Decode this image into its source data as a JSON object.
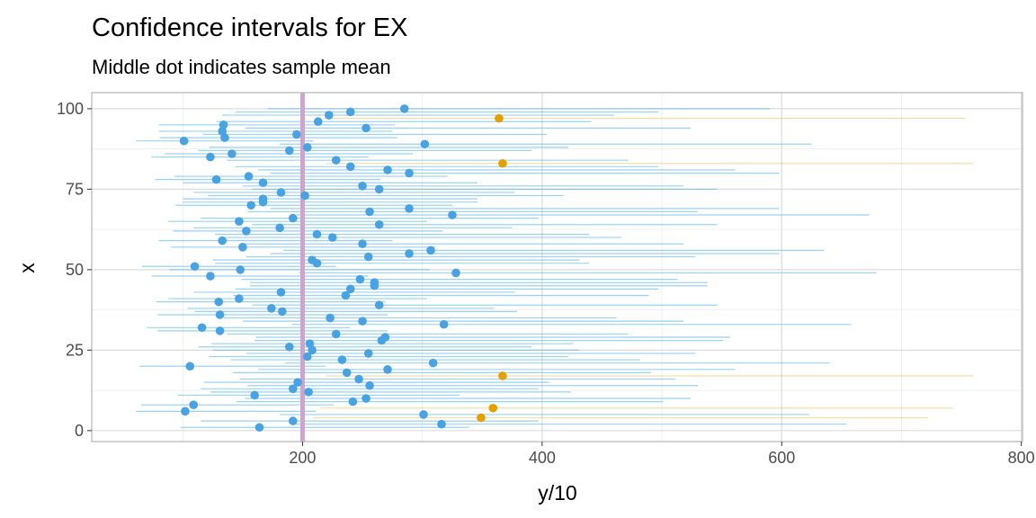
{
  "chart_data": {
    "type": "interval",
    "title": "Confidence intervals for EX",
    "subtitle": "Middle dot indicates sample mean",
    "xlabel": "y/10",
    "ylabel": "x",
    "xlim": [
      24,
      801
    ],
    "ylim": [
      -3.4,
      105
    ],
    "xticks": [
      200,
      400,
      600,
      800
    ],
    "yticks": [
      0,
      25,
      50,
      75,
      100
    ],
    "grid": true,
    "reference_line": 200,
    "colors": {
      "covers": "#56B4E9",
      "misses": "#E69F00",
      "reference": "#C9A6CC"
    },
    "x": [
      1,
      2,
      3,
      4,
      5,
      6,
      7,
      8,
      9,
      10,
      11,
      12,
      13,
      14,
      15,
      16,
      17,
      18,
      19,
      20,
      21,
      22,
      23,
      24,
      25,
      26,
      27,
      28,
      29,
      30,
      31,
      32,
      33,
      34,
      35,
      36,
      37,
      38,
      39,
      40,
      41,
      42,
      43,
      44,
      45,
      46,
      47,
      48,
      49,
      50,
      51,
      52,
      53,
      54,
      55,
      56,
      57,
      58,
      59,
      60,
      61,
      62,
      63,
      64,
      65,
      66,
      67,
      68,
      69,
      70,
      71,
      72,
      73,
      74,
      75,
      76,
      77,
      78,
      79,
      80,
      81,
      82,
      83,
      84,
      85,
      86,
      87,
      88,
      89,
      90,
      91,
      92,
      93,
      94,
      95,
      96,
      97,
      98,
      99,
      100
    ],
    "mean": [
      164,
      316,
      192,
      349,
      301,
      102,
      359,
      109,
      242,
      253,
      160,
      205,
      192,
      256,
      196,
      247,
      367,
      237,
      271,
      106,
      309,
      233,
      204,
      255,
      208,
      189,
      206,
      266,
      269,
      228,
      131,
      116,
      318,
      250,
      223,
      131,
      183,
      174,
      264,
      130,
      147,
      236,
      182,
      240,
      260,
      260,
      248,
      123,
      328,
      148,
      110,
      212,
      208,
      255,
      289,
      307,
      150,
      250,
      133,
      225,
      212,
      153,
      181,
      264,
      147,
      192,
      325,
      256,
      289,
      157,
      167,
      167,
      202,
      182,
      264,
      250,
      167,
      128,
      155,
      289,
      271,
      240,
      367,
      228,
      123,
      141,
      189,
      204,
      302,
      101,
      135,
      195,
      133,
      253,
      134,
      213,
      364,
      222,
      240,
      285
    ],
    "lower": [
      98,
      190,
      115,
      209,
      181,
      61,
      215,
      65,
      145,
      152,
      96,
      123,
      115,
      154,
      118,
      148,
      220,
      142,
      163,
      64,
      185,
      140,
      122,
      153,
      125,
      113,
      124,
      160,
      161,
      137,
      79,
      70,
      191,
      150,
      134,
      79,
      110,
      104,
      158,
      78,
      88,
      142,
      109,
      144,
      156,
      156,
      149,
      74,
      197,
      89,
      66,
      127,
      125,
      153,
      173,
      184,
      90,
      150,
      80,
      135,
      127,
      92,
      109,
      158,
      88,
      115,
      195,
      154,
      173,
      94,
      100,
      100,
      121,
      109,
      158,
      150,
      100,
      77,
      93,
      173,
      163,
      144,
      220,
      137,
      74,
      85,
      113,
      122,
      181,
      61,
      81,
      117,
      80,
      152,
      80,
      128,
      218,
      133,
      144,
      171
    ],
    "upper": [
      339,
      654,
      397,
      722,
      623,
      211,
      743,
      226,
      501,
      524,
      331,
      424,
      397,
      530,
      406,
      511,
      760,
      491,
      561,
      219,
      640,
      482,
      422,
      528,
      431,
      391,
      426,
      551,
      557,
      472,
      271,
      240,
      658,
      518,
      462,
      271,
      379,
      360,
      546,
      269,
      304,
      489,
      377,
      497,
      538,
      538,
      513,
      255,
      679,
      306,
      228,
      439,
      431,
      528,
      598,
      635,
      311,
      518,
      275,
      466,
      439,
      317,
      375,
      546,
      304,
      397,
      673,
      530,
      598,
      325,
      346,
      346,
      418,
      377,
      546,
      518,
      346,
      265,
      321,
      598,
      561,
      497,
      760,
      472,
      255,
      292,
      391,
      422,
      625,
      209,
      279,
      404,
      275,
      524,
      277,
      441,
      753,
      460,
      497,
      590
    ]
  }
}
